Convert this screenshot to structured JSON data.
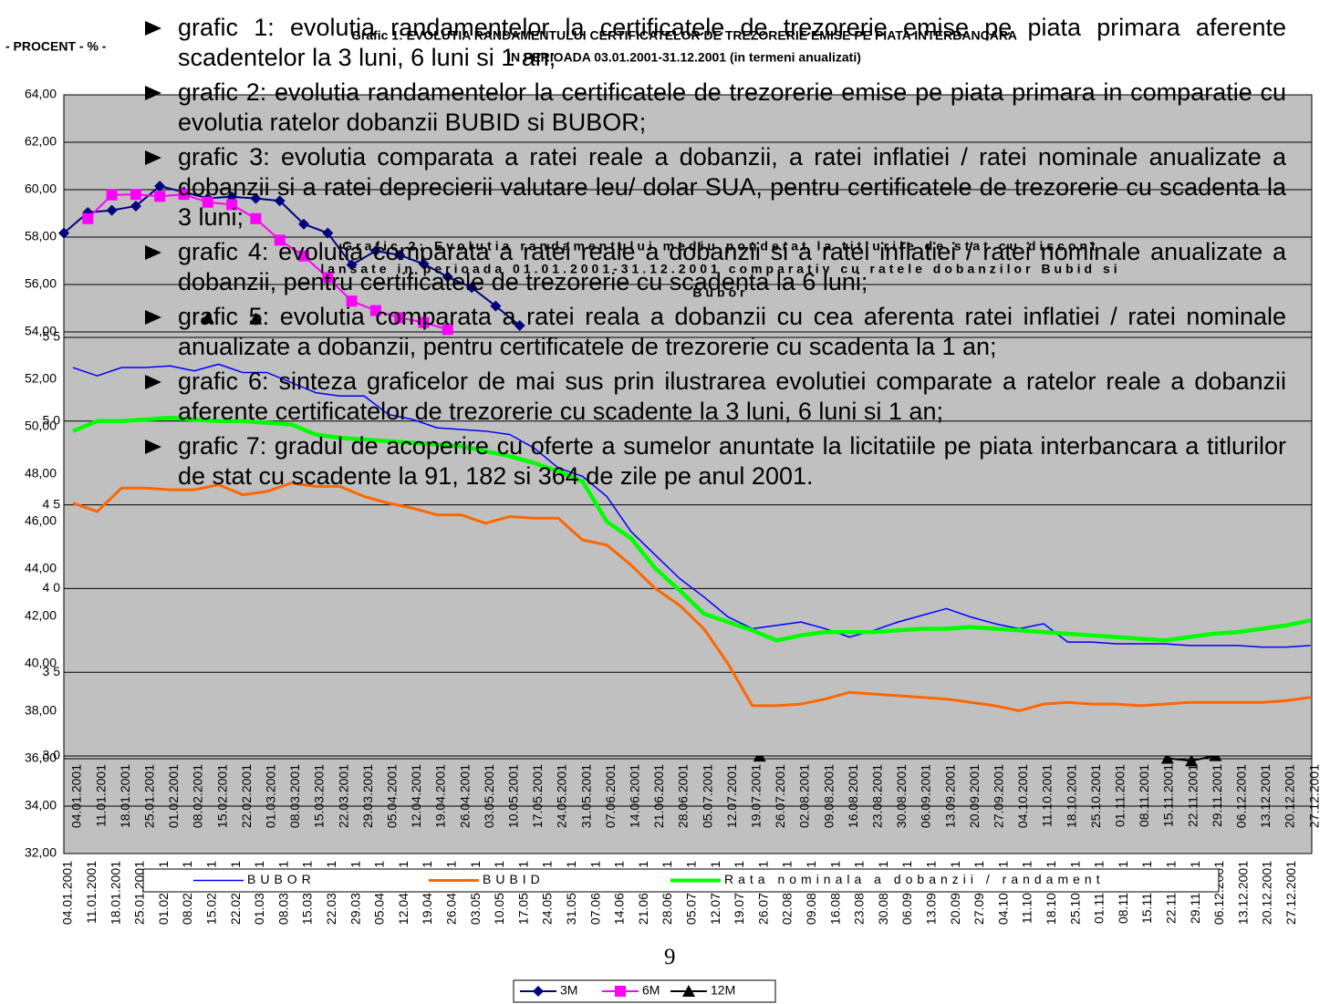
{
  "chart_data": [
    {
      "type": "line",
      "title_lines": [
        "Grafic 1: EVOLUTIA RANDAMENTULUI CERTIFICATELOR DE TREZORERIE EMISE PE PIATA INTERBANCARA",
        "IN PERIOADA 03.01.2001-31.12.2001 (in termeni anualizati)"
      ],
      "y_label": "- PROCENT - % -",
      "categories": [
        "04.01.2001",
        "11.01.2001",
        "18.01.2001",
        "25.01.2001",
        "01.02.2001",
        "08.02.2001",
        "15.02.2001",
        "22.02.2001",
        "01.03.2001",
        "08.03.2001",
        "15.03.2001",
        "22.03.2001",
        "29.03.2001",
        "05.04.2001",
        "12.04.2001",
        "19.04.2001",
        "26.04.2001",
        "03.05.2001",
        "10.05.2001",
        "17.05.2001",
        "24.05.2001",
        "31.05.2001",
        "07.06.2001",
        "14.06.2001",
        "21.06.2001",
        "28.06.2001",
        "05.07.2001",
        "12.07.2001",
        "19.07.2001",
        "26.07.2001",
        "02.08.2001",
        "09.08.2001",
        "16.08.2001",
        "23.08.2001",
        "30.08.2001",
        "06.09.2001",
        "13.09.2001",
        "20.09.2001",
        "27.09.2001",
        "04.10.2001",
        "11.10.2001",
        "18.10.2001",
        "25.10.2001",
        "01.11.2001",
        "08.11.2001",
        "15.11.2001",
        "22.11.2001",
        "29.11.2001",
        "06.12.2001",
        "13.12.2001",
        "20.12.2001",
        "27.12.2001"
      ],
      "series": [
        {
          "name": "3M",
          "color": "#000080",
          "marker": "diamond",
          "values": [
            58.17,
            59.04,
            59.13,
            59.31,
            60.15,
            59.9,
            59.64,
            59.7,
            59.63,
            59.53,
            58.55,
            58.17,
            56.83,
            57.42,
            57.24,
            56.87,
            56.32,
            55.87,
            55.09,
            54.27,
            null,
            null,
            null,
            null,
            null,
            null,
            null,
            null,
            null,
            null,
            null,
            null,
            null,
            null,
            null,
            null,
            null,
            null,
            null,
            null,
            null,
            null,
            null,
            null,
            null,
            null,
            null,
            null,
            null,
            null,
            null,
            null
          ]
        },
        {
          "name": "6M",
          "color": "#ff00ff",
          "marker": "square",
          "values": [
            null,
            58.78,
            59.78,
            59.8,
            59.72,
            59.8,
            59.47,
            59.37,
            58.78,
            57.87,
            57.2,
            56.29,
            55.3,
            54.9,
            54.6,
            54.4,
            54.1,
            null,
            null,
            null,
            null,
            null,
            null,
            null,
            null,
            null,
            null,
            null,
            null,
            null,
            null,
            null,
            null,
            null,
            null,
            null,
            null,
            null,
            null,
            null,
            null,
            null,
            null,
            null,
            null,
            null,
            null,
            null,
            null,
            null,
            null,
            null
          ]
        },
        {
          "name": "12M",
          "color": "#000000",
          "marker": "triangle",
          "values": [
            null,
            null,
            null,
            null,
            null,
            null,
            54.59,
            null,
            54.55,
            null,
            null,
            null,
            null,
            null,
            null,
            null,
            null,
            null,
            null,
            null,
            null,
            null,
            null,
            null,
            null,
            null,
            null,
            null,
            null,
            36.11,
            null,
            null,
            null,
            null,
            null,
            null,
            null,
            null,
            null,
            null,
            null,
            null,
            null,
            null,
            null,
            null,
            36.02,
            35.91,
            36.13,
            null,
            null,
            null
          ]
        }
      ],
      "ylim": [
        32,
        64
      ],
      "yticks": [
        {
          "value": 32,
          "label": "32,00"
        },
        {
          "value": 34,
          "label": "34,00"
        },
        {
          "value": 36,
          "label": "36,00"
        },
        {
          "value": 38,
          "label": "38,00"
        },
        {
          "value": 40,
          "label": "40,00"
        },
        {
          "value": 42,
          "label": "42,00"
        },
        {
          "value": 44,
          "label": "44,00"
        },
        {
          "value": 46,
          "label": "46,00"
        },
        {
          "value": 48,
          "label": "48,00"
        },
        {
          "value": 50,
          "label": "50,00"
        },
        {
          "value": 52,
          "label": "52,00"
        },
        {
          "value": 54,
          "label": "54,00"
        },
        {
          "value": 56,
          "label": "56,00"
        },
        {
          "value": 58,
          "label": "58,00"
        },
        {
          "value": 60,
          "label": "60,00"
        },
        {
          "value": 62,
          "label": "62,00"
        },
        {
          "value": 64,
          "label": "64,00"
        }
      ],
      "grid": true
    },
    {
      "type": "line",
      "title_lines": [
        "Grafic 2: Evolutia randamentului mediu ponderat la titlurile de stat cu discont",
        "lansate in perioada 01.01.2001-31.12.2001 comparativ cu ratele dobanzilor Bubid si",
        "Bubor"
      ],
      "categories": [
        "04.01.2001",
        "11.01.2001",
        "18.01.2001",
        "25.01.2001",
        "01.02.2001",
        "08.02.2001",
        "15.02.2001",
        "22.02.2001",
        "01.03.2001",
        "08.03.2001",
        "15.03.2001",
        "22.03.2001",
        "29.03.2001",
        "05.04.2001",
        "12.04.2001",
        "19.04.2001",
        "26.04.2001",
        "03.05.2001",
        "10.05.2001",
        "17.05.2001",
        "24.05.2001",
        "31.05.2001",
        "07.06.2001",
        "14.06.2001",
        "21.06.2001",
        "28.06.2001",
        "05.07.2001",
        "12.07.2001",
        "19.07.2001",
        "26.07.2001",
        "02.08.2001",
        "09.08.2001",
        "16.08.2001",
        "23.08.2001",
        "30.08.2001",
        "06.09.2001",
        "13.09.2001",
        "20.09.2001",
        "27.09.2001",
        "04.10.2001",
        "11.10.2001",
        "18.10.2001",
        "25.10.2001",
        "01.11.2001",
        "08.11.2001",
        "15.11.2001",
        "22.11.2001",
        "29.11.2001",
        "06.12.2001",
        "13.12.2001",
        "20.12.2001",
        "27.12.2001"
      ],
      "series": [
        {
          "name": "BUBOR",
          "color": "#0000ff",
          "line_width": 1.5,
          "values": [
            53.2,
            52.7,
            53.2,
            53.2,
            53.3,
            53.0,
            53.4,
            52.9,
            52.9,
            52.3,
            51.7,
            51.5,
            51.5,
            50.4,
            50.1,
            49.6,
            49.5,
            49.4,
            49.2,
            48.4,
            47.2,
            46.7,
            45.5,
            43.4,
            42.0,
            40.6,
            39.5,
            38.3,
            37.6,
            37.8,
            38.0,
            37.6,
            37.1,
            37.5,
            38.0,
            38.4,
            38.8,
            38.3,
            37.9,
            37.6,
            37.9,
            36.8,
            36.8,
            36.7,
            36.7,
            36.7,
            36.6,
            36.6,
            36.6,
            36.5,
            36.5,
            36.6
          ]
        },
        {
          "name": "BUBID",
          "color": "#ff6600",
          "line_width": 3,
          "values": [
            45.1,
            44.6,
            46.0,
            46.0,
            45.9,
            45.9,
            46.2,
            45.6,
            45.8,
            46.3,
            46.1,
            46.1,
            45.5,
            45.1,
            44.8,
            44.4,
            44.4,
            43.9,
            44.3,
            44.2,
            44.2,
            42.9,
            42.6,
            41.4,
            40.0,
            39.0,
            37.6,
            35.5,
            33.0,
            33.0,
            33.1,
            33.4,
            33.8,
            33.7,
            33.6,
            33.5,
            33.4,
            33.2,
            33.0,
            32.7,
            33.1,
            33.2,
            33.1,
            33.1,
            33.0,
            33.1,
            33.2,
            33.2,
            33.2,
            33.2,
            33.3,
            33.5
          ]
        },
        {
          "name": "Rata nominala a dobanzii / randament",
          "color": "#00ff00",
          "line_width": 4.5,
          "values": [
            49.4,
            50.0,
            50.0,
            50.1,
            50.2,
            50.1,
            50.0,
            50.0,
            49.9,
            49.8,
            49.2,
            49.0,
            48.9,
            48.8,
            48.7,
            48.6,
            48.5,
            48.2,
            47.9,
            47.5,
            47.0,
            46.4,
            44.0,
            43.0,
            41.2,
            39.9,
            38.5,
            38.0,
            37.5,
            36.9,
            37.2,
            37.4,
            37.4,
            37.4,
            37.5,
            37.6,
            37.6,
            37.7,
            37.6,
            37.5,
            37.4,
            37.3,
            37.2,
            37.1,
            37.0,
            36.9,
            37.1,
            37.3,
            37.4,
            37.6,
            37.8,
            38.1
          ]
        }
      ],
      "ylim": [
        30,
        55
      ],
      "yticks": [
        {
          "value": 30,
          "label": "3 0"
        },
        {
          "value": 35,
          "label": "3 5"
        },
        {
          "value": 40,
          "label": "4 0"
        },
        {
          "value": 45,
          "label": "4 5"
        },
        {
          "value": 50,
          "label": "5 0"
        },
        {
          "value": 55,
          "label": "5 5"
        }
      ],
      "grid": true
    }
  ],
  "bullets": [
    "grafic 1: evolutia randamentelor la certificatele de trezorerie emise pe piata primara aferente scadentelor la 3 luni, 6 luni si 1 an;",
    "grafic 2: evolutia randamentelor la certificatele de trezorerie emise pe piata primara in comparatie cu evolutia ratelor dobanzii BUBID si BUBOR;",
    "grafic 3: evolutia comparata a ratei reale a dobanzii, a ratei inflatiei / ratei nominale anualizate a dobanzii si a ratei deprecierii valutare leu/ dolar SUA, pentru certificatele de trezorerie cu scadenta la 3 luni;",
    "grafic 4: evolutia comparata a ratei reale a dobanzii si a ratei inflatiei / ratei nominale anualizate a dobanzii, pentru certificatele de trezorerie cu scadenta la 6 luni;",
    "grafic 5: evolutia comparata a ratei reala a dobanzii cu cea aferenta ratei inflatiei / ratei nominale anualizate a dobanzii, pentru certificatele de trezorerie cu scadenta la 1 an;",
    "grafic 6: sinteza graficelor de mai sus prin ilustrarea evolutiei comparate a ratelor reale a dobanzii aferente certificatelor de trezorerie cu scadente la 3 luni, 6 luni si 1 an;",
    "grafic 7: gradul de acoperire cu oferte a sumelor anuntate la licitatiile pe piata interbancara a titlurilor de stat cu scadente la 91, 182 si 364 de zile pe anul 2001."
  ],
  "page_number": "9"
}
